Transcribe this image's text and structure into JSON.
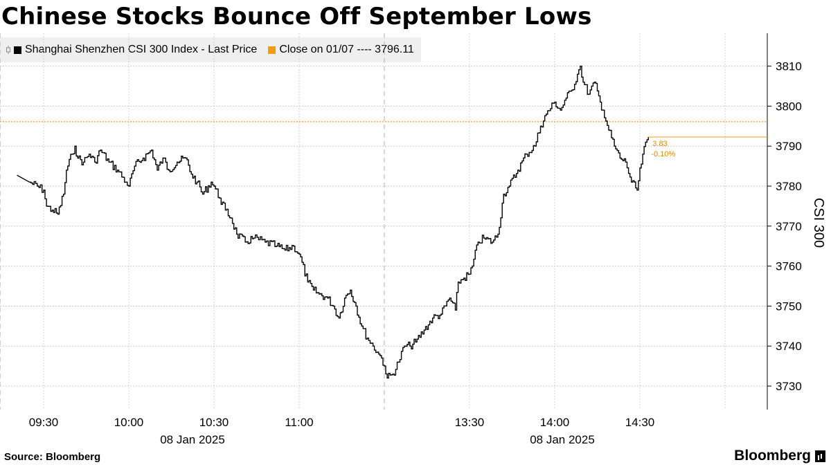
{
  "title": "Chinese Stocks Bounce Off September Lows",
  "legend": {
    "series_label": "Shanghai Shenzhen CSI 300 Index - Last Price",
    "close_label": "Close on 01/07 ---- 3796.11",
    "series_color": "#000000",
    "close_color": "#f39c12",
    "icon": "chart-legend-icon"
  },
  "source": "Source: Bloomberg",
  "brand": "Bloomberg",
  "chart_data": {
    "type": "line",
    "title": "Chinese Stocks Bounce Off September Lows",
    "ylabel": "CSI 300",
    "ylim": [
      3724,
      3818
    ],
    "yticks": [
      3730,
      3740,
      3750,
      3760,
      3770,
      3780,
      3790,
      3800,
      3810
    ],
    "x_ticks": [
      "09:30",
      "10:00",
      "10:30",
      "11:00",
      "13:30",
      "14:00",
      "14:30"
    ],
    "date_labels": [
      "08 Jan 2025",
      "08 Jan 2025"
    ],
    "prior_close": {
      "label": "Close on 01/07",
      "value": 3796.11
    },
    "change_annotation": {
      "points": "3.83",
      "percent": "-0.10%"
    },
    "series": [
      {
        "name": "Shanghai Shenzhen CSI 300 Index - Last Price",
        "x": [
          "09:25",
          "09:30",
          "09:31",
          "09:33",
          "09:35",
          "09:37",
          "09:38",
          "09:40",
          "09:41",
          "09:42",
          "09:44",
          "09:46",
          "09:48",
          "09:50",
          "09:53",
          "09:56",
          "09:59",
          "10:00",
          "10:02",
          "10:05",
          "10:08",
          "10:10",
          "10:12",
          "10:14",
          "10:17",
          "10:20",
          "10:22",
          "10:24",
          "10:26",
          "10:29",
          "10:30",
          "10:32",
          "10:34",
          "10:36",
          "10:38",
          "10:41",
          "10:44",
          "10:48",
          "10:52",
          "10:55",
          "10:58",
          "11:00",
          "11:03",
          "11:05",
          "11:07",
          "11:10",
          "11:12",
          "11:14",
          "11:16",
          "11:18",
          "11:20",
          "11:22",
          "11:24",
          "11:26",
          "11:28",
          "11:29",
          "13:00",
          "13:01",
          "13:03",
          "13:05",
          "13:07",
          "13:09",
          "13:11",
          "13:14",
          "13:17",
          "13:20",
          "13:23",
          "13:25",
          "13:26",
          "13:28",
          "13:30",
          "13:31",
          "13:33",
          "13:35",
          "13:38",
          "13:40",
          "13:42",
          "13:44",
          "13:47",
          "13:50",
          "13:53",
          "13:55",
          "13:57",
          "14:00",
          "14:02",
          "14:04",
          "14:06",
          "14:08",
          "14:09",
          "14:10",
          "14:12",
          "14:14",
          "14:16",
          "14:17",
          "14:19",
          "14:21",
          "14:23",
          "14:25",
          "14:27",
          "14:29",
          "14:31",
          "14:33"
        ],
        "values": [
          3781,
          3779,
          3775,
          3774,
          3773,
          3778,
          3784,
          3788,
          3790,
          3787,
          3786,
          3788,
          3786,
          3789,
          3786,
          3784,
          3781,
          3780,
          3785,
          3787,
          3789,
          3784,
          3787,
          3784,
          3786,
          3787,
          3783,
          3781,
          3778,
          3781,
          3780,
          3777,
          3774,
          3772,
          3768,
          3766,
          3767,
          3766,
          3765,
          3764,
          3765,
          3763,
          3756,
          3754,
          3753,
          3752,
          3750,
          3747,
          3752,
          3754,
          3750,
          3745,
          3742,
          3740,
          3738,
          3737,
          3735,
          3732,
          3733,
          3736,
          3740,
          3740,
          3741,
          3744,
          3747,
          3748,
          3752,
          3749,
          3756,
          3757,
          3758,
          3760,
          3766,
          3767,
          3766,
          3768,
          3778,
          3780,
          3784,
          3788,
          3790,
          3795,
          3798,
          3801,
          3799,
          3802,
          3804,
          3808,
          3810,
          3806,
          3803,
          3806,
          3801,
          3799,
          3794,
          3790,
          3787,
          3786,
          3781,
          3779,
          3788,
          3792.28
        ]
      }
    ]
  }
}
